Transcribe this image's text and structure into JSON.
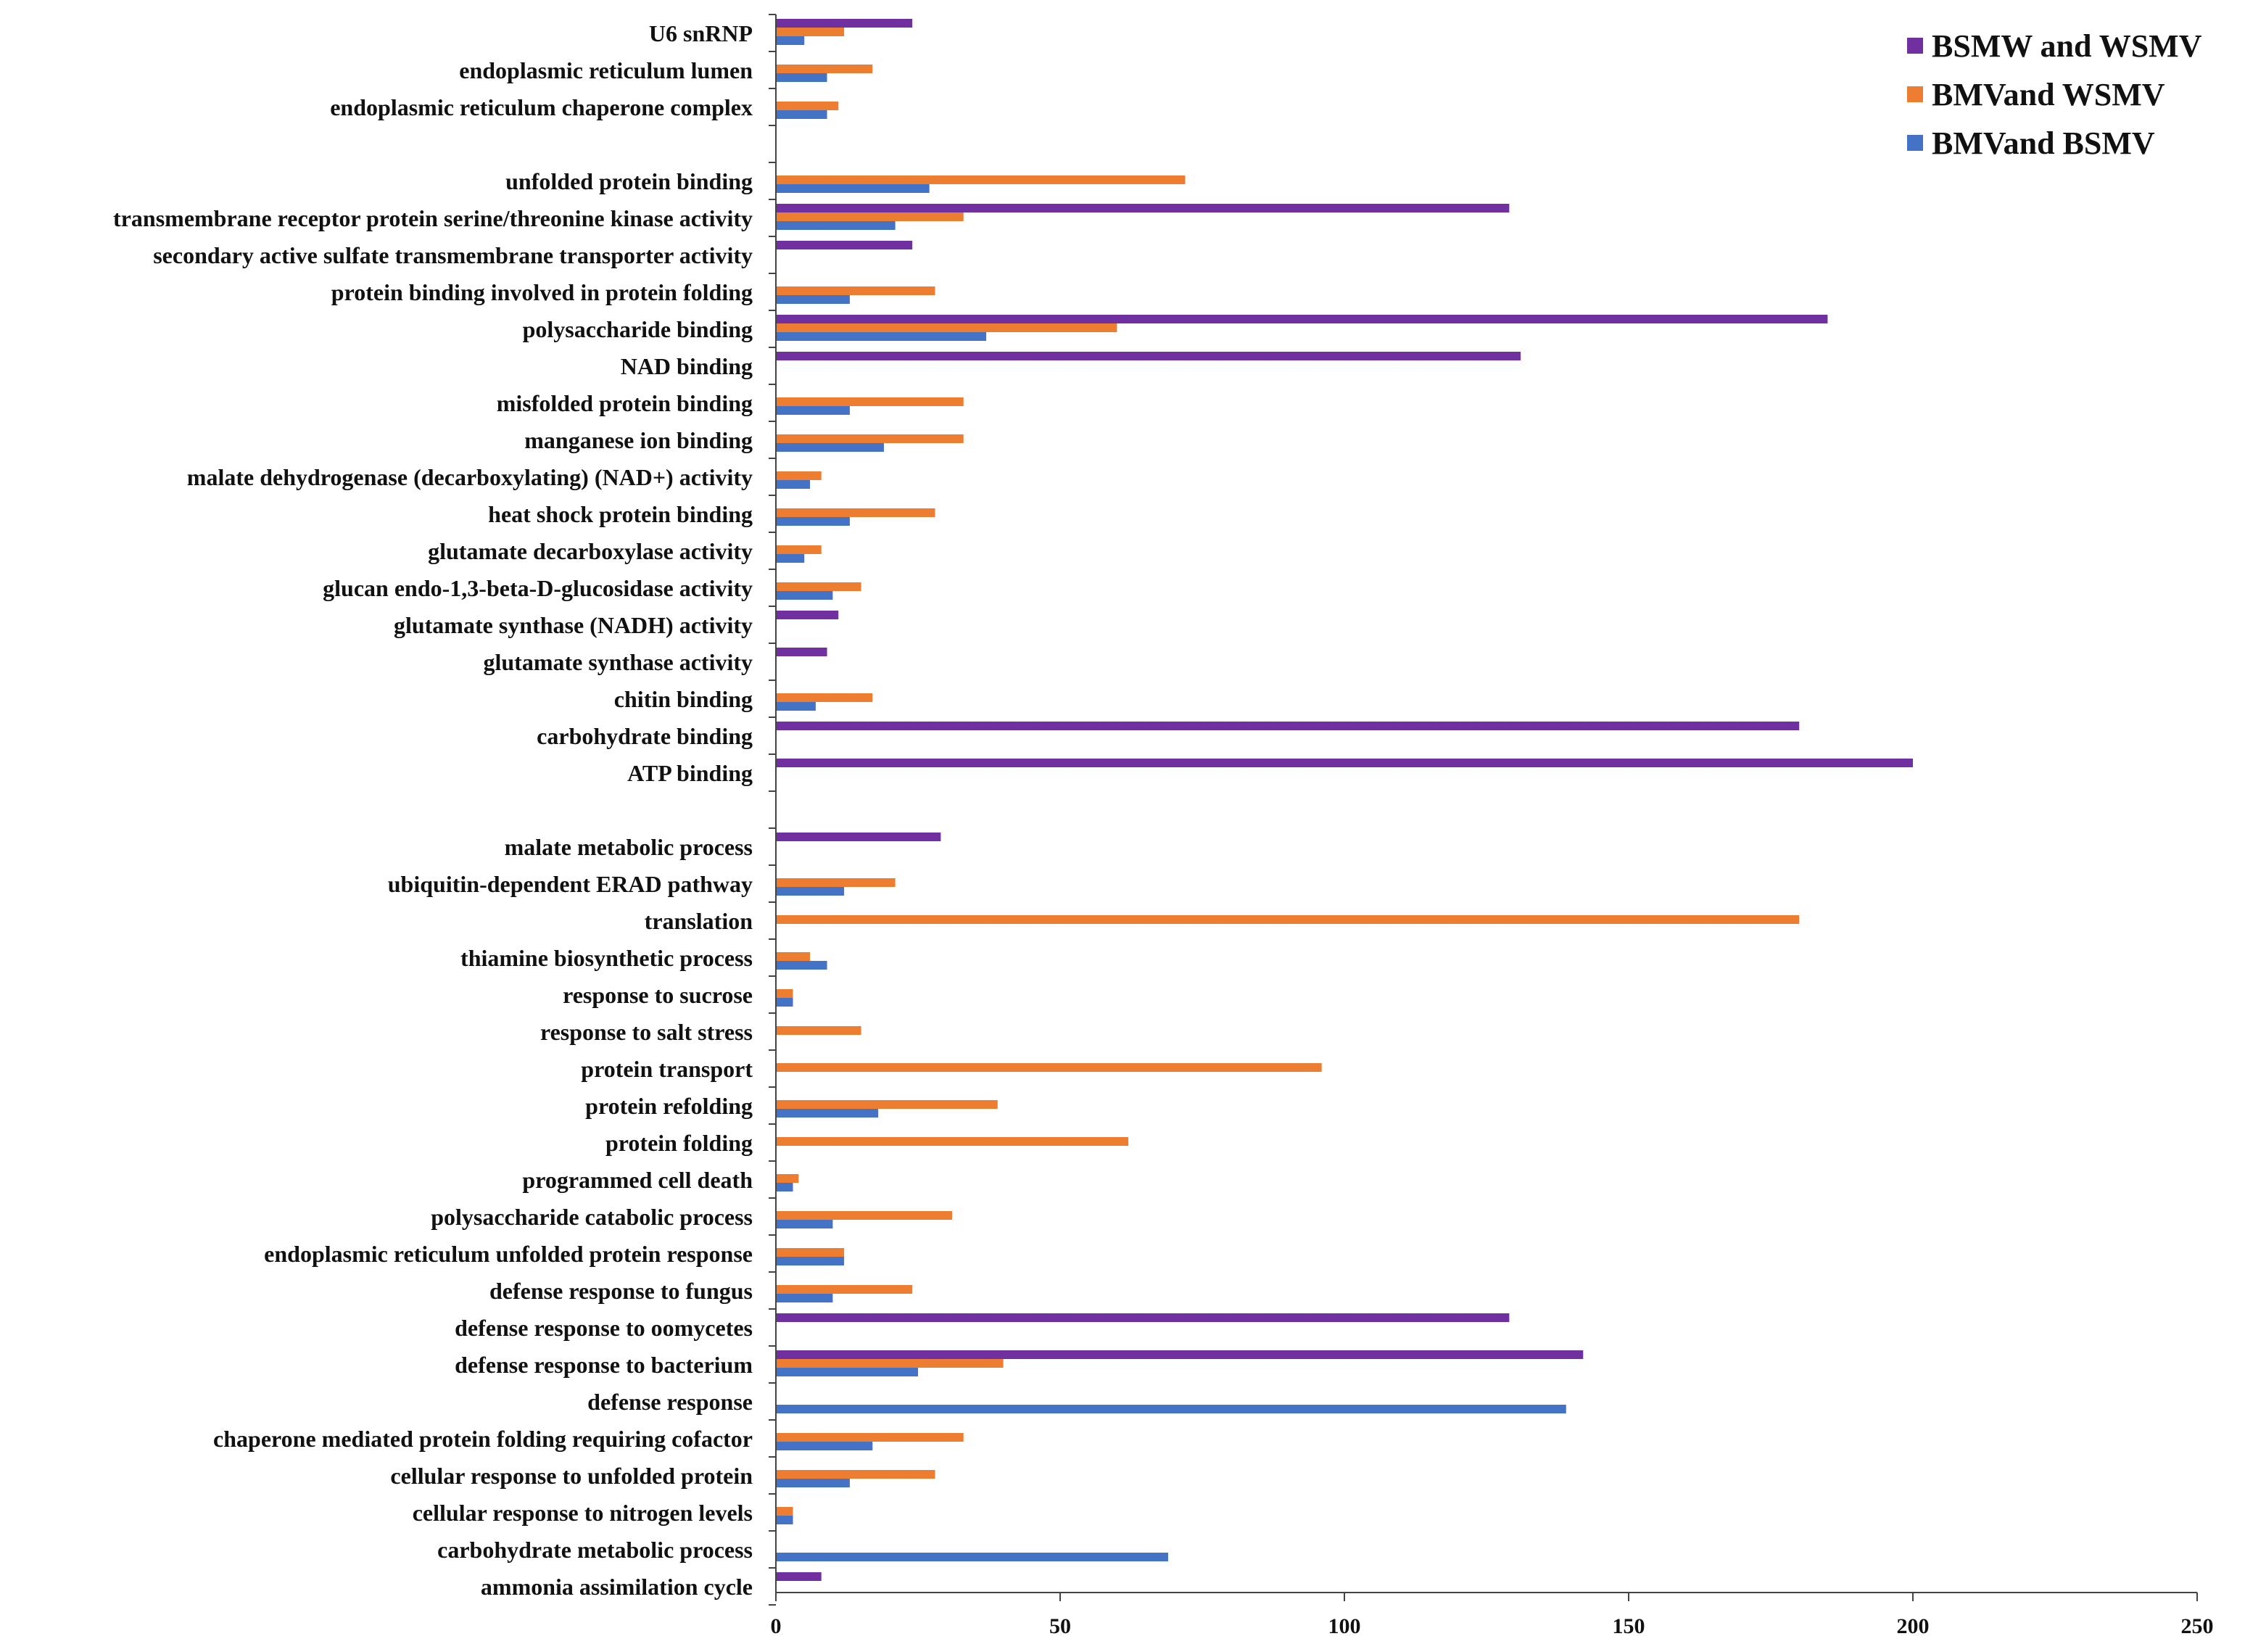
{
  "chart_data": {
    "type": "bar",
    "orientation": "horizontal",
    "title": "",
    "xlabel": "",
    "ylabel": "",
    "xlim": [
      0,
      250
    ],
    "xticks": [
      0,
      50,
      100,
      150,
      200,
      250
    ],
    "grid": false,
    "legend_position": "top-right",
    "categories": [
      "U6 snRNP",
      "endoplasmic reticulum lumen",
      "endoplasmic reticulum chaperone complex",
      "",
      "unfolded protein binding",
      "transmembrane receptor protein serine/threonine kinase activity",
      "secondary active sulfate transmembrane transporter activity",
      "protein binding involved in protein folding",
      "polysaccharide binding",
      "NAD binding",
      "misfolded protein binding",
      "manganese ion binding",
      "malate dehydrogenase (decarboxylating) (NAD+) activity",
      "heat shock protein binding",
      "glutamate decarboxylase activity",
      "glucan endo-1,3-beta-D-glucosidase activity",
      "glutamate synthase (NADH) activity",
      "glutamate synthase activity",
      "chitin binding",
      "carbohydrate binding",
      "ATP binding",
      "",
      "malate metabolic process",
      "ubiquitin-dependent ERAD pathway",
      "translation",
      "thiamine biosynthetic process",
      "response to sucrose",
      "response to salt stress",
      "protein transport",
      "protein refolding",
      "protein folding",
      "programmed cell death",
      "polysaccharide catabolic process",
      "endoplasmic reticulum unfolded protein response",
      "defense response to fungus",
      "defense response to oomycetes",
      "defense response to bacterium",
      "defense response",
      "chaperone mediated protein folding requiring cofactor",
      "cellular response to unfolded protein",
      "cellular response to nitrogen levels",
      "carbohydrate metabolic process",
      "ammonia assimilation cycle"
    ],
    "series": [
      {
        "name": "BSMW and WSMV",
        "color": "#7030A0",
        "values": [
          24,
          0,
          0,
          0,
          0,
          129,
          24,
          0,
          185,
          131,
          0,
          0,
          0,
          0,
          0,
          0,
          11,
          9,
          0,
          180,
          200,
          0,
          29,
          0,
          0,
          0,
          0,
          0,
          0,
          0,
          0,
          0,
          0,
          0,
          0,
          129,
          142,
          0,
          0,
          0,
          0,
          0,
          8
        ]
      },
      {
        "name": "BMVand WSMV",
        "color": "#ED7D31",
        "values": [
          12,
          17,
          11,
          0,
          72,
          33,
          0,
          28,
          60,
          0,
          33,
          33,
          8,
          28,
          8,
          15,
          0,
          0,
          17,
          0,
          0,
          0,
          0,
          21,
          180,
          6,
          3,
          15,
          96,
          39,
          62,
          4,
          31,
          12,
          24,
          0,
          40,
          0,
          33,
          28,
          3,
          0,
          0
        ]
      },
      {
        "name": "BMVand BSMV",
        "color": "#4472C4",
        "values": [
          5,
          9,
          9,
          0,
          27,
          21,
          0,
          13,
          37,
          0,
          13,
          19,
          6,
          13,
          5,
          10,
          0,
          0,
          7,
          0,
          0,
          0,
          0,
          12,
          0,
          9,
          3,
          0,
          0,
          18,
          0,
          3,
          10,
          12,
          10,
          0,
          25,
          139,
          17,
          13,
          3,
          69,
          0
        ]
      }
    ]
  }
}
